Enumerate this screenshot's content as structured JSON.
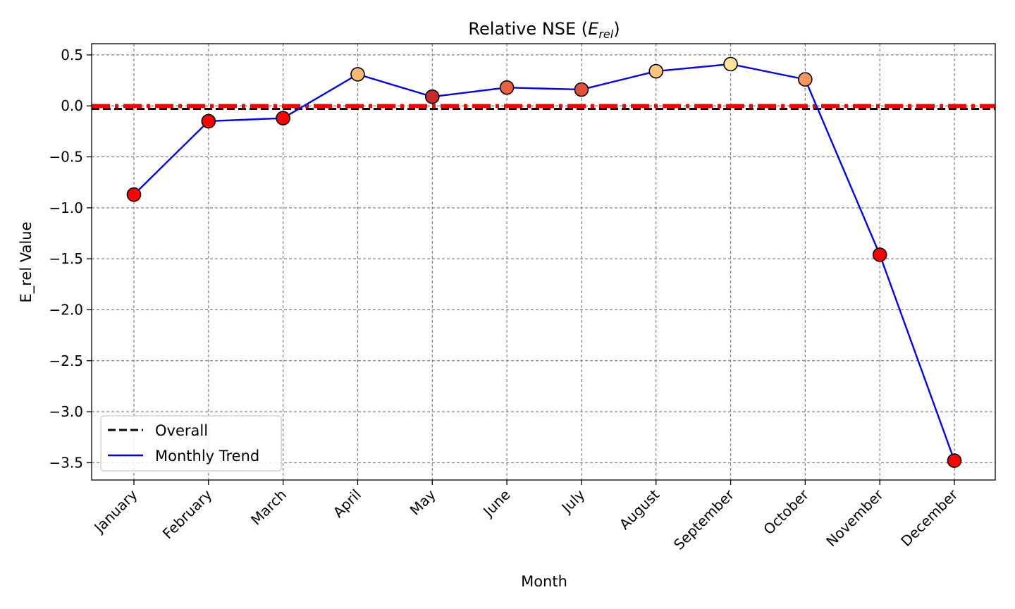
{
  "chart_data": {
    "type": "line",
    "title_main": "Relative NSE (",
    "title_math_base": "E",
    "title_math_sub": "rel",
    "title_close": ")",
    "xlabel": "Month",
    "ylabel": "E_rel Value",
    "categories": [
      "January",
      "February",
      "March",
      "April",
      "May",
      "June",
      "July",
      "August",
      "September",
      "October",
      "November",
      "December"
    ],
    "series": [
      {
        "name": "Monthly Trend",
        "color": "#0000ff",
        "values": [
          -0.87,
          -0.15,
          -0.12,
          0.31,
          0.09,
          0.18,
          0.16,
          0.34,
          0.41,
          0.26,
          -1.46,
          -3.48
        ],
        "marker_colors": [
          "#ff0000",
          "#ff0000",
          "#ff0000",
          "#fdb870",
          "#cc2a2a",
          "#e8643e",
          "#e44f3a",
          "#fec57c",
          "#fee39a",
          "#f9965b",
          "#ff0000",
          "#ff0000"
        ]
      }
    ],
    "reference_lines": [
      {
        "name": "Overall",
        "value": -0.03,
        "color": "#000000",
        "style": "dashed"
      },
      {
        "name": "",
        "value": 0.0,
        "color": "#ff0000",
        "style": "dash-dot"
      }
    ],
    "ylim": [
      -3.67,
      0.61
    ],
    "yticks": [
      0.5,
      0.0,
      -0.5,
      -1.0,
      -1.5,
      -2.0,
      -2.5,
      -3.0,
      -3.5
    ],
    "ytick_labels": [
      "0.5",
      "0.0",
      "−0.5",
      "−1.0",
      "−1.5",
      "−2.0",
      "−2.5",
      "−3.0",
      "−3.5"
    ],
    "grid": true,
    "legend": {
      "placement": "lower-left",
      "entries": [
        {
          "label": "Overall",
          "color": "#000000",
          "style": "dashed"
        },
        {
          "label": "Monthly Trend",
          "color": "#0000ff",
          "style": "solid"
        }
      ]
    }
  }
}
